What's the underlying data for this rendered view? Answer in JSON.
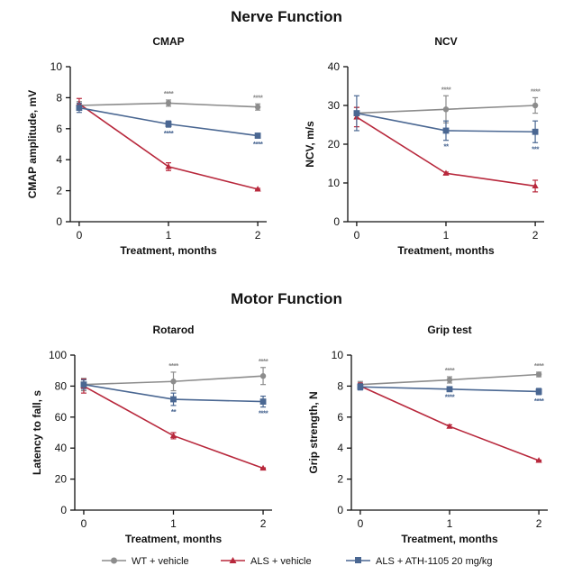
{
  "section_titles": [
    "Nerve Function",
    "Motor Function"
  ],
  "legend": [
    {
      "label": "WT + vehicle",
      "color": "#8c8c8c",
      "marker": "circle"
    },
    {
      "label": "ALS + vehicle",
      "color": "#b8283c",
      "marker": "triangle"
    },
    {
      "label": "ALS + ATH-1105 20 mg/kg",
      "color": "#4a6792",
      "marker": "square"
    }
  ],
  "chart_data": [
    {
      "type": "line",
      "title": "CMAP",
      "xlabel": "Treatment, months",
      "ylabel": "CMAP amplitude, mV",
      "x": [
        0,
        1,
        2
      ],
      "xlim": [
        -0.1,
        2.1
      ],
      "ylim": [
        0,
        10
      ],
      "yticks": [
        0,
        2,
        4,
        6,
        8,
        10
      ],
      "series": [
        {
          "name": "WT + vehicle",
          "values": [
            7.5,
            7.65,
            7.4
          ],
          "errors": [
            0.25,
            0.2,
            0.2
          ],
          "sig": [
            "",
            "****",
            "****"
          ]
        },
        {
          "name": "ALS + vehicle",
          "values": [
            7.6,
            3.55,
            2.1
          ],
          "errors": [
            0.35,
            0.25,
            0.05
          ],
          "sig": [
            "",
            "",
            ""
          ]
        },
        {
          "name": "ALS + ATH-1105 20 mg/kg",
          "values": [
            7.35,
            6.3,
            5.55
          ],
          "errors": [
            0.3,
            0.2,
            0.15
          ],
          "sig": [
            "",
            "****",
            "****"
          ]
        }
      ]
    },
    {
      "type": "line",
      "title": "NCV",
      "xlabel": "Treatment, months",
      "ylabel": "NCV, m/s",
      "x": [
        0,
        1,
        2
      ],
      "xlim": [
        -0.1,
        2.1
      ],
      "ylim": [
        0,
        40
      ],
      "yticks": [
        0,
        10,
        20,
        30,
        40
      ],
      "series": [
        {
          "name": "WT + vehicle",
          "values": [
            28,
            29,
            30
          ],
          "errors": [
            1.5,
            3.5,
            2
          ],
          "sig": [
            "",
            "****",
            "****"
          ]
        },
        {
          "name": "ALS + vehicle",
          "values": [
            27,
            12.5,
            9.2
          ],
          "errors": [
            2.5,
            0.3,
            1.5
          ],
          "sig": [
            "",
            "",
            ""
          ]
        },
        {
          "name": "ALS + ATH-1105 20 mg/kg",
          "values": [
            28,
            23.5,
            23.2
          ],
          "errors": [
            4.5,
            2.5,
            2.8
          ],
          "sig": [
            "",
            "**",
            "***"
          ]
        }
      ]
    },
    {
      "type": "line",
      "title": "Rotarod",
      "xlabel": "Treatment, months",
      "ylabel": "Latency to fall, s",
      "x": [
        0,
        1,
        2
      ],
      "xlim": [
        -0.1,
        2.1
      ],
      "ylim": [
        0,
        100
      ],
      "yticks": [
        0,
        20,
        40,
        60,
        80,
        100
      ],
      "series": [
        {
          "name": "WT + vehicle",
          "values": [
            81,
            83,
            86.5
          ],
          "errors": [
            4,
            6,
            5.5
          ],
          "sig": [
            "",
            "****",
            "****"
          ]
        },
        {
          "name": "ALS + vehicle",
          "values": [
            80,
            48,
            27
          ],
          "errors": [
            4.5,
            2,
            0.3
          ],
          "sig": [
            "",
            "",
            ""
          ]
        },
        {
          "name": "ALS + ATH-1105 20 mg/kg",
          "values": [
            81,
            71.5,
            70
          ],
          "errors": [
            3,
            4,
            3.5
          ],
          "sig": [
            "",
            "**",
            "****"
          ]
        }
      ]
    },
    {
      "type": "line",
      "title": "Grip test",
      "xlabel": "Treatment, months",
      "ylabel": "Grip strength, N",
      "x": [
        0,
        1,
        2
      ],
      "xlim": [
        -0.1,
        2.1
      ],
      "ylim": [
        0,
        10
      ],
      "yticks": [
        0,
        2,
        4,
        6,
        8,
        10
      ],
      "series": [
        {
          "name": "WT + vehicle",
          "values": [
            8.1,
            8.4,
            8.75
          ],
          "errors": [
            0.2,
            0.2,
            0.15
          ],
          "sig": [
            "",
            "****",
            "****"
          ]
        },
        {
          "name": "ALS + vehicle",
          "values": [
            8.0,
            5.4,
            3.2
          ],
          "errors": [
            0.2,
            0.1,
            0.03
          ],
          "sig": [
            "",
            "",
            ""
          ]
        },
        {
          "name": "ALS + ATH-1105 20 mg/kg",
          "values": [
            7.95,
            7.8,
            7.65
          ],
          "errors": [
            0.2,
            0.1,
            0.2
          ],
          "sig": [
            "",
            "****",
            "****"
          ]
        }
      ]
    }
  ]
}
